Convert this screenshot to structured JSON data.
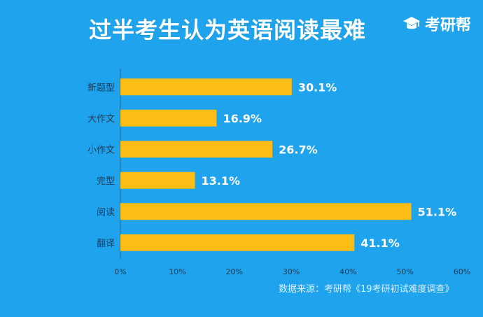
{
  "header": {
    "title": "过半考生认为英语阅读最难",
    "brand": "考研帮",
    "brand_icon": "graduation-cap-icon"
  },
  "source": "数据来源：考研帮《19考研初试难度调查》",
  "colors": {
    "background": "#1ea3ec",
    "bar": "#fbbd16",
    "text": "#ffffff",
    "axis": "#1f3b57"
  },
  "chart_data": {
    "type": "bar",
    "orientation": "horizontal",
    "categories": [
      "新题型",
      "大作文",
      "小作文",
      "完型",
      "阅读",
      "翻译"
    ],
    "values": [
      30.1,
      16.9,
      26.7,
      13.1,
      51.1,
      41.1
    ],
    "data_labels": [
      "30.1%",
      "16.9%",
      "26.7%",
      "13.1%",
      "51.1%",
      "41.1%"
    ],
    "x_ticks": [
      "0%",
      "10%",
      "20%",
      "30%",
      "40%",
      "50%",
      "60%"
    ],
    "xlim": [
      0,
      60
    ],
    "grid": false,
    "legend": "none",
    "title": "过半考生认为英语阅读最难",
    "xlabel": "",
    "ylabel": ""
  }
}
